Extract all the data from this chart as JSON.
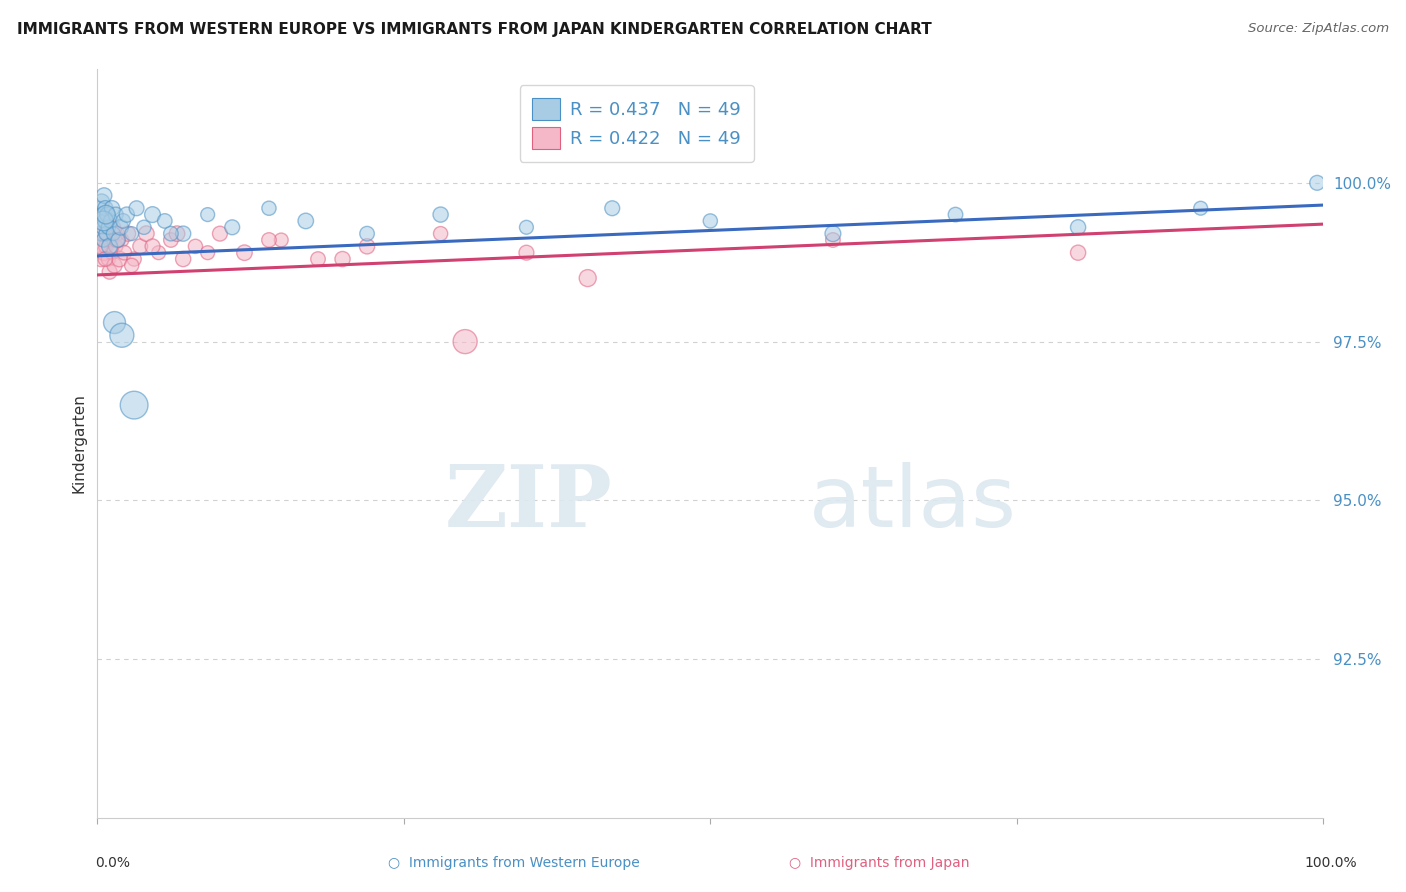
{
  "title": "IMMIGRANTS FROM WESTERN EUROPE VS IMMIGRANTS FROM JAPAN KINDERGARTEN CORRELATION CHART",
  "source": "Source: ZipAtlas.com",
  "ylabel": "Kindergarten",
  "ytick_values": [
    92.5,
    95.0,
    97.5,
    100.0
  ],
  "xlim": [
    0.0,
    100.0
  ],
  "ylim": [
    90.0,
    101.8
  ],
  "legend_label1": "Immigrants from Western Europe",
  "legend_label2": "Immigrants from Japan",
  "r1": 0.437,
  "n1": 49,
  "r2": 0.422,
  "n2": 49,
  "color_blue": "#a8cce4",
  "color_pink": "#f4b8c8",
  "color_blue_dark": "#4a90c4",
  "color_pink_dark": "#e06080",
  "color_blue_line": "#3a6abf",
  "color_pink_line": "#d04070",
  "blue_x": [
    0.15,
    0.2,
    0.25,
    0.3,
    0.35,
    0.4,
    0.45,
    0.5,
    0.55,
    0.6,
    0.65,
    0.7,
    0.8,
    0.9,
    1.0,
    1.1,
    1.2,
    1.3,
    1.5,
    1.7,
    1.9,
    2.1,
    2.4,
    2.8,
    3.2,
    3.8,
    4.5,
    5.5,
    7.0,
    9.0,
    11.0,
    14.0,
    17.0,
    22.0,
    28.0,
    35.0,
    42.0,
    50.0,
    60.0,
    70.0,
    80.0,
    90.0,
    99.5,
    0.5,
    0.7,
    1.4,
    2.0,
    3.0,
    6.0
  ],
  "blue_y": [
    99.5,
    99.6,
    99.4,
    99.2,
    99.7,
    99.3,
    99.5,
    99.1,
    99.8,
    99.4,
    99.6,
    99.2,
    99.5,
    99.3,
    99.0,
    99.4,
    99.6,
    99.2,
    99.5,
    99.1,
    99.3,
    99.4,
    99.5,
    99.2,
    99.6,
    99.3,
    99.5,
    99.4,
    99.2,
    99.5,
    99.3,
    99.6,
    99.4,
    99.2,
    99.5,
    99.3,
    99.6,
    99.4,
    99.2,
    99.5,
    99.3,
    99.6,
    100.0,
    99.4,
    99.5,
    97.8,
    97.6,
    96.5,
    99.2
  ],
  "blue_sizes": [
    120,
    100,
    90,
    110,
    130,
    95,
    115,
    105,
    125,
    110,
    120,
    100,
    115,
    105,
    130,
    110,
    120,
    100,
    115,
    105,
    125,
    110,
    120,
    100,
    115,
    105,
    130,
    110,
    120,
    100,
    115,
    105,
    125,
    110,
    120,
    100,
    115,
    105,
    130,
    110,
    120,
    100,
    115,
    200,
    180,
    250,
    300,
    400,
    110
  ],
  "pink_x": [
    0.1,
    0.2,
    0.3,
    0.4,
    0.5,
    0.55,
    0.6,
    0.7,
    0.8,
    0.9,
    1.0,
    1.1,
    1.2,
    1.3,
    1.4,
    1.5,
    1.6,
    1.8,
    2.0,
    2.2,
    2.5,
    3.0,
    3.5,
    4.0,
    5.0,
    6.0,
    7.0,
    8.0,
    10.0,
    12.0,
    15.0,
    18.0,
    22.0,
    28.0,
    35.0,
    0.25,
    0.45,
    0.65,
    1.6,
    2.8,
    4.5,
    6.5,
    9.0,
    14.0,
    20.0,
    30.0,
    40.0,
    60.0,
    80.0
  ],
  "pink_y": [
    99.0,
    99.2,
    98.8,
    99.3,
    99.1,
    98.9,
    99.4,
    99.0,
    99.2,
    98.8,
    98.6,
    99.1,
    98.9,
    99.3,
    98.7,
    99.0,
    99.2,
    98.8,
    99.1,
    98.9,
    99.2,
    98.8,
    99.0,
    99.2,
    98.9,
    99.1,
    98.8,
    99.0,
    99.2,
    98.9,
    99.1,
    98.8,
    99.0,
    99.2,
    98.9,
    99.0,
    99.2,
    98.8,
    99.1,
    98.7,
    99.0,
    99.2,
    98.9,
    99.1,
    98.8,
    97.5,
    98.5,
    99.1,
    98.9
  ],
  "pink_sizes": [
    100,
    110,
    120,
    105,
    115,
    125,
    100,
    110,
    120,
    105,
    115,
    125,
    100,
    110,
    120,
    105,
    115,
    125,
    100,
    110,
    120,
    105,
    115,
    125,
    100,
    110,
    120,
    105,
    115,
    125,
    100,
    110,
    120,
    105,
    115,
    125,
    100,
    110,
    120,
    105,
    115,
    125,
    100,
    110,
    120,
    300,
    150,
    110,
    120
  ],
  "blue_line_x0": 0.0,
  "blue_line_y0": 98.85,
  "blue_line_x1": 100.0,
  "blue_line_y1": 99.65,
  "pink_line_x0": 0.0,
  "pink_line_y0": 98.55,
  "pink_line_x1": 100.0,
  "pink_line_y1": 99.35,
  "watermark_zip": "ZIP",
  "watermark_atlas": "atlas",
  "background_color": "#ffffff",
  "grid_color": "#cccccc",
  "tick_color": "#4a90c4"
}
